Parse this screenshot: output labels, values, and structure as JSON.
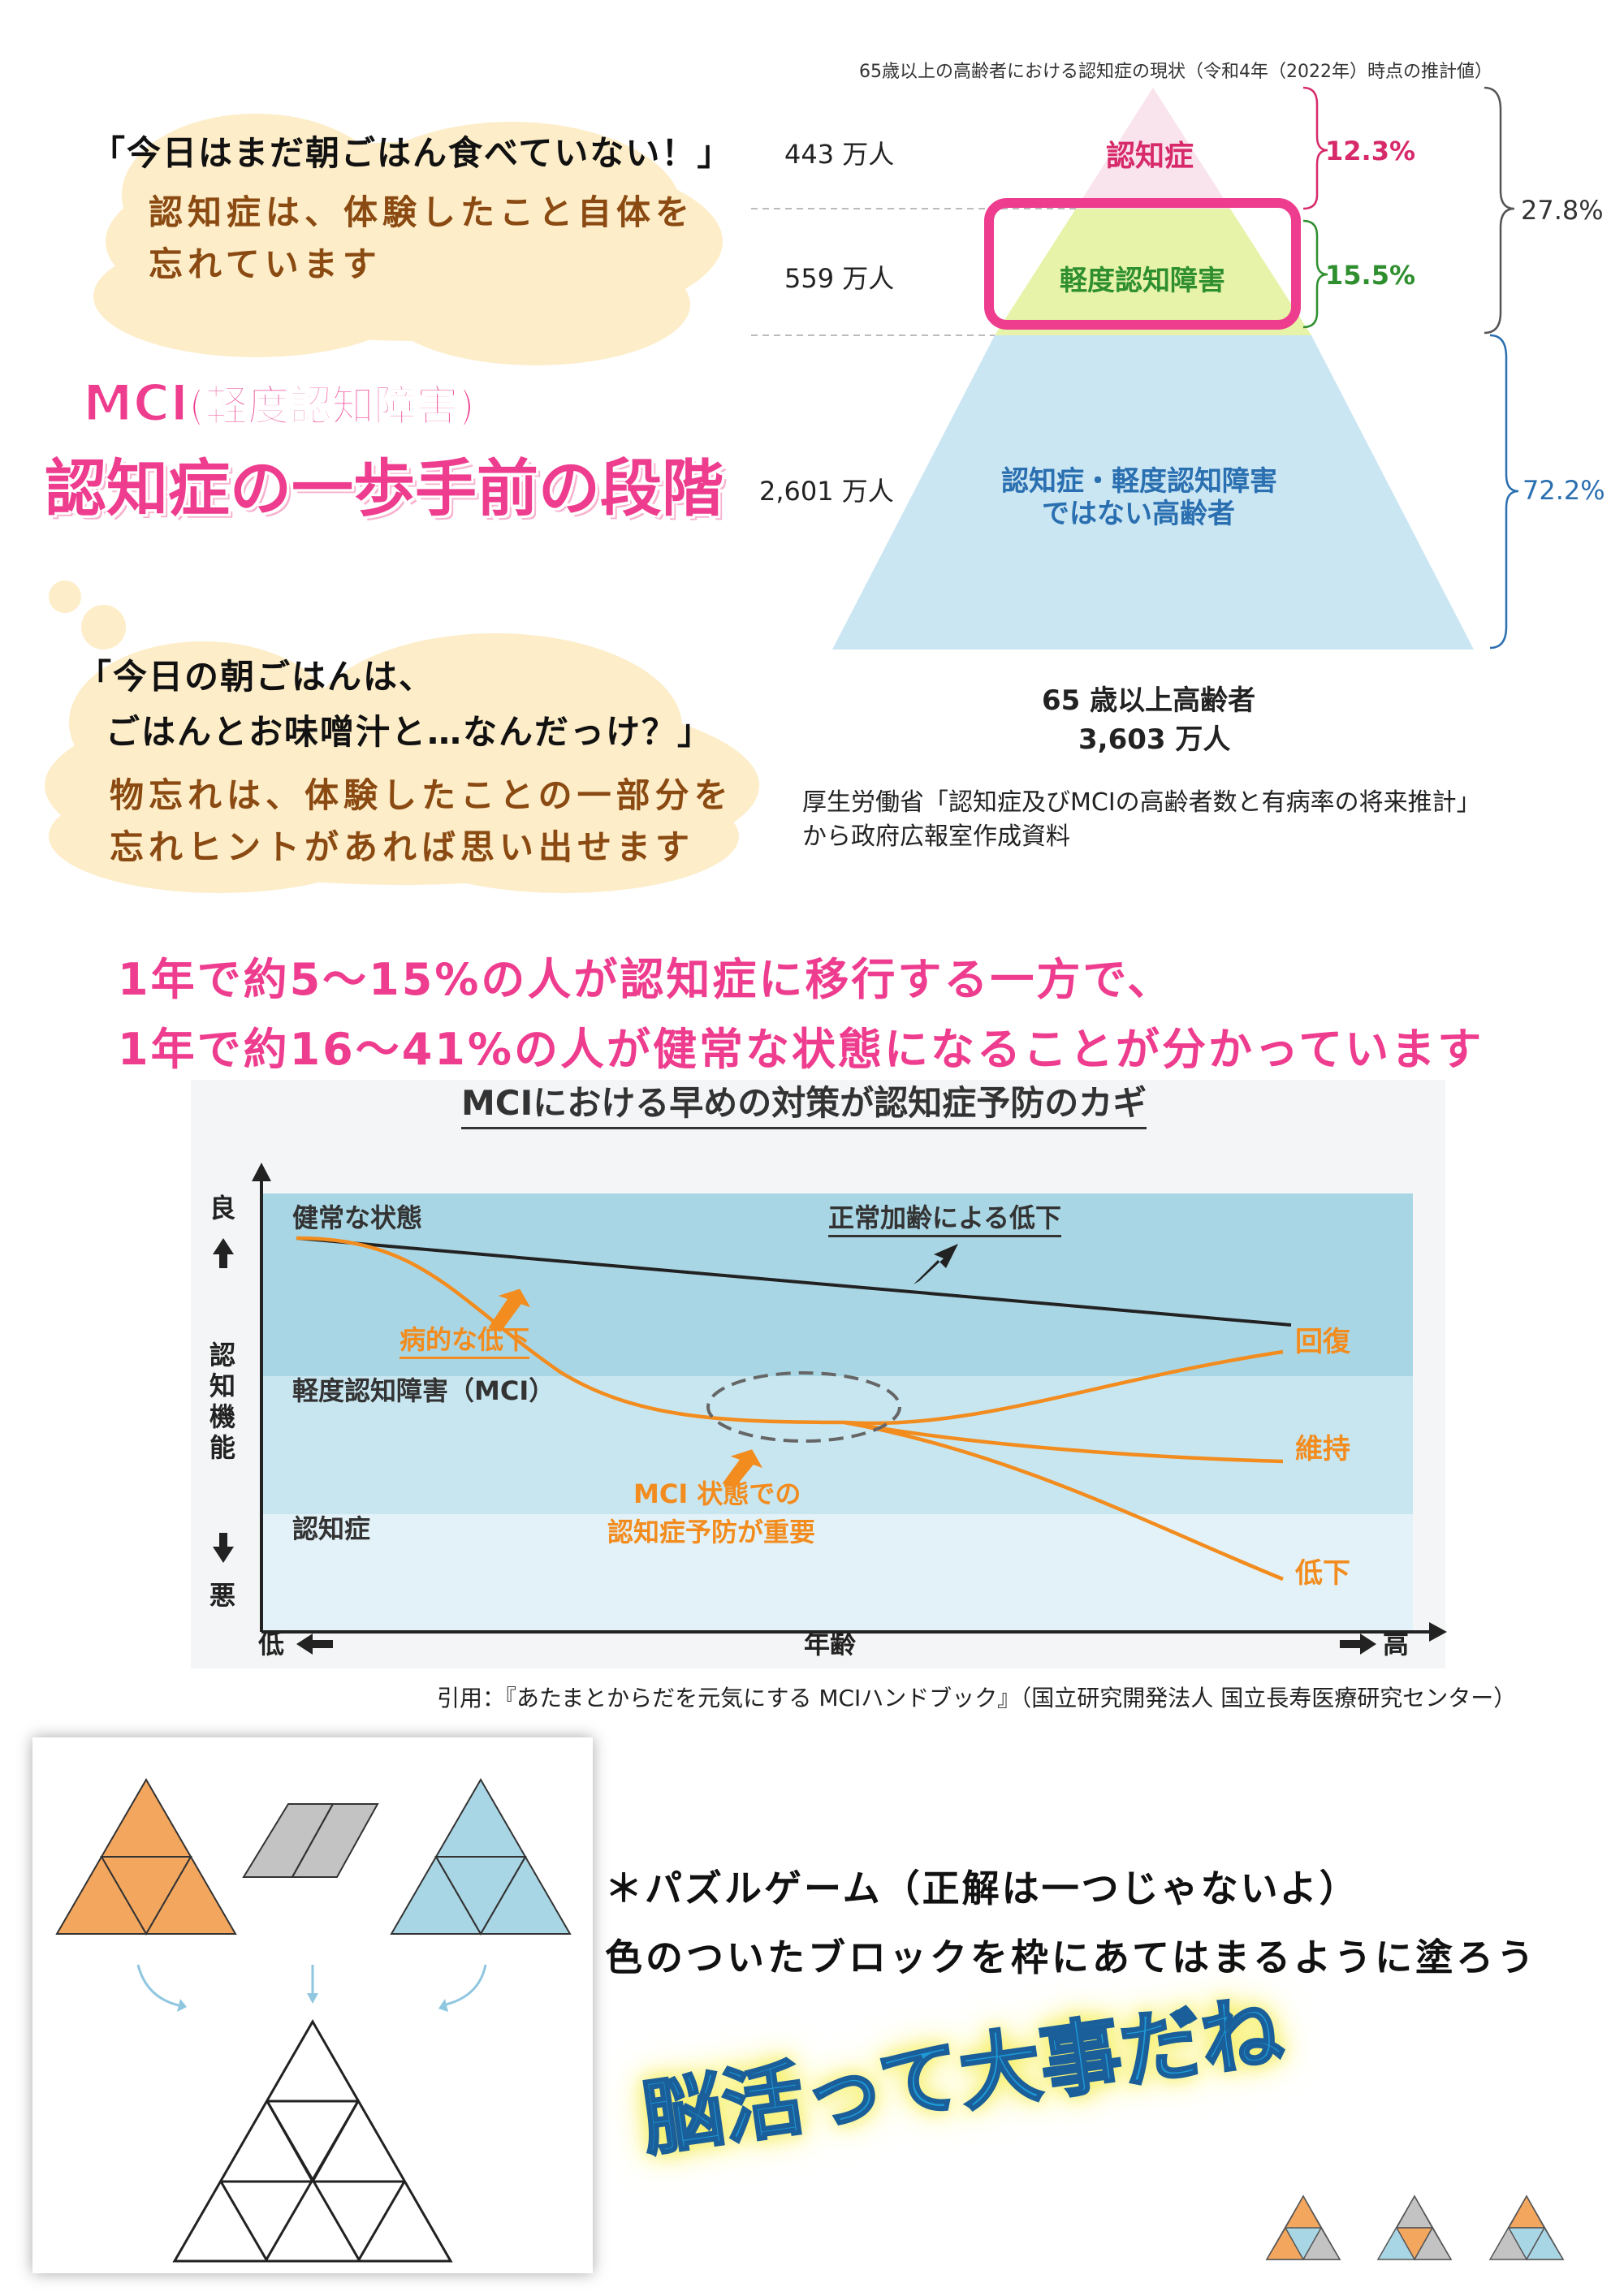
{
  "bubble1": {
    "quote": "「今日はまだ朝ごはん食べていない！」",
    "line1": "認知症は、体験したこと自体を",
    "line2": "忘れています"
  },
  "mci": {
    "label": "MCI",
    "label_paren": "(軽度認知障害)",
    "headline": "認知症の一歩手前の段階"
  },
  "bubble2": {
    "quote1": "「今日の朝ごはんは、",
    "quote2": "ごはんとお味噌汁と…なんだっけ？」",
    "line1": "物忘れは、体験したことの一部分を",
    "line2": "忘れヒントがあれば思い出せます"
  },
  "pyramid": {
    "title": "65歳以上の高齢者における認知症の現状（令和4年（2022年）時点の推計値）",
    "tiers": [
      {
        "count": "443 万人",
        "label": "認知症",
        "percent": "12.3%",
        "value": 12.3,
        "color": "#f9e3ec",
        "label_color": "#d72a6a"
      },
      {
        "count": "559 万人",
        "label": "軽度認知障害",
        "percent": "15.5%",
        "value": 15.5,
        "color": "#e6f3a8",
        "label_color": "#2f8f2f"
      },
      {
        "count": "2,601 万人",
        "label_line1": "認知症・軽度認知障害",
        "label_line2": "ではない高齢者",
        "percent": "72.2%",
        "value": 72.2,
        "color": "#cbe6f3",
        "label_color": "#2a6fb0"
      }
    ],
    "combined_percent": "27.8%",
    "total_line1": "65 歳以上高齢者",
    "total_line2": "3,603 万人",
    "source_line1": "厚生労働省「認知症及びMCIの高齢者数と有病率の将来推計」",
    "source_line2": "から政府広報室作成資料",
    "highlight_color": "#ee3c8e"
  },
  "message": {
    "line1": "1年で約5〜15%の人が認知症に移行する一方で、",
    "line2": "1年で約16〜41%の人が健常な状態になることが分かっています"
  },
  "graph": {
    "title": "MCIにおける早めの対策が認知症予防のカギ",
    "y_axis_label": "認知機能",
    "y_top": "良",
    "y_bottom": "悪",
    "x_left": "低",
    "x_label": "年齢",
    "x_right": "高",
    "zone_healthy": "健常な状態",
    "zone_mci": "軽度認知障害（MCI）",
    "zone_dementia": "認知症",
    "normal_aging": "正常加齢による低下",
    "pathological": "病的な低下",
    "mci_note1": "MCI 状態での",
    "mci_note2": "認知症予防が重要",
    "recover": "回復",
    "maintain": "維持",
    "decline": "低下",
    "citation": "引用：『あたまとからだを元気にする MCIハンドブック』（国立研究開発法人 国立長寿医療研究センター）"
  },
  "puzzle": {
    "title": "＊パズルゲーム（正解は一つじゃないよ）",
    "instruction": "色のついたブロックを枠にあてはまるように塗ろう",
    "slogan": "脳活って大事だね",
    "colors": {
      "orange": "#f2a65e",
      "gray": "#c3c3c3",
      "blue": "#a9d6e5"
    }
  }
}
